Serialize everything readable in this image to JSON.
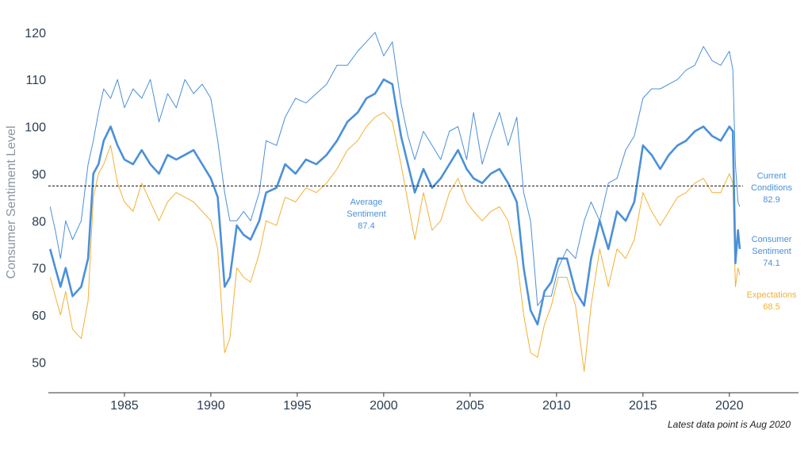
{
  "chart_data": {
    "type": "line",
    "title": "",
    "xlabel": "",
    "ylabel": "Consumer Sentiment Level",
    "xlim": [
      1980.6,
      2024.0
    ],
    "ylim": [
      43.5,
      123.5
    ],
    "grid": false,
    "yticks": [
      50,
      60,
      70,
      80,
      90,
      100,
      110,
      120
    ],
    "xticks": [
      1985,
      1990,
      1995,
      2000,
      2005,
      2010,
      2015,
      2020
    ],
    "average": {
      "value": 87.4,
      "label_lines": [
        "Average",
        "Sentiment",
        "87.4"
      ]
    },
    "note": "Latest data point is Aug 2020",
    "colors": {
      "current": "#4a90d9",
      "sentiment": "#4a90d9",
      "expectations": "#f2b134",
      "axis": "#333333",
      "text": "#2c3e50"
    },
    "series": [
      {
        "name": "Current Conditions",
        "key": "current",
        "end_label": [
          "Current",
          "Conditions",
          "82.9"
        ],
        "x": [
          1980.7,
          1981.0,
          1981.3,
          1981.6,
          1982.0,
          1982.5,
          1982.9,
          1983.2,
          1983.5,
          1983.8,
          1984.2,
          1984.6,
          1985.0,
          1985.5,
          1986.0,
          1986.5,
          1987.0,
          1987.5,
          1988.0,
          1988.5,
          1989.0,
          1989.5,
          1990.0,
          1990.4,
          1990.8,
          1991.1,
          1991.5,
          1991.9,
          1992.3,
          1992.8,
          1993.2,
          1993.8,
          1994.3,
          1994.9,
          1995.5,
          1996.1,
          1996.7,
          1997.3,
          1997.9,
          1998.5,
          1999.0,
          1999.5,
          2000.0,
          2000.5,
          2001.0,
          2001.4,
          2001.8,
          2002.3,
          2002.8,
          2003.3,
          2003.8,
          2004.3,
          2004.8,
          2005.2,
          2005.7,
          2006.2,
          2006.7,
          2007.2,
          2007.7,
          2008.1,
          2008.5,
          2008.9,
          2009.3,
          2009.7,
          2010.1,
          2010.6,
          2011.1,
          2011.6,
          2012.0,
          2012.5,
          2013.0,
          2013.5,
          2014.0,
          2014.5,
          2015.0,
          2015.5,
          2016.0,
          2016.5,
          2017.0,
          2017.5,
          2018.0,
          2018.5,
          2019.0,
          2019.5,
          2020.0,
          2020.2,
          2020.35,
          2020.5,
          2020.6
        ],
        "y": [
          83,
          78,
          72,
          80,
          76,
          80,
          92,
          97,
          103,
          108,
          106,
          110,
          104,
          108,
          106,
          110,
          101,
          107,
          104,
          110,
          107,
          109,
          106,
          97,
          86,
          80,
          80,
          82,
          80,
          86,
          97,
          96,
          102,
          106,
          105,
          107,
          109,
          113,
          113,
          116,
          118,
          120,
          115,
          118,
          105,
          98,
          93,
          99,
          96,
          93,
          99,
          100,
          93,
          103,
          92,
          98,
          103,
          96,
          102,
          86,
          80,
          62,
          64,
          64,
          70,
          74,
          72,
          80,
          84,
          80,
          88,
          89,
          95,
          98,
          106,
          108,
          108,
          109,
          110,
          112,
          113,
          117,
          114,
          113,
          116,
          112,
          92,
          84,
          83
        ]
      },
      {
        "name": "Consumer Sentiment",
        "key": "sentiment",
        "end_label": [
          "Consumer",
          "Sentiment",
          "74.1"
        ],
        "x": [
          1980.7,
          1981.0,
          1981.3,
          1981.6,
          1982.0,
          1982.5,
          1982.9,
          1983.2,
          1983.5,
          1983.8,
          1984.2,
          1984.6,
          1985.0,
          1985.5,
          1986.0,
          1986.5,
          1987.0,
          1987.5,
          1988.0,
          1988.5,
          1989.0,
          1989.5,
          1990.0,
          1990.4,
          1990.8,
          1991.1,
          1991.5,
          1991.9,
          1992.3,
          1992.8,
          1993.2,
          1993.8,
          1994.3,
          1994.9,
          1995.5,
          1996.1,
          1996.7,
          1997.3,
          1997.9,
          1998.5,
          1999.0,
          1999.5,
          2000.0,
          2000.5,
          2001.0,
          2001.4,
          2001.8,
          2002.3,
          2002.8,
          2003.3,
          2003.8,
          2004.3,
          2004.8,
          2005.2,
          2005.7,
          2006.2,
          2006.7,
          2007.2,
          2007.7,
          2008.1,
          2008.5,
          2008.9,
          2009.3,
          2009.7,
          2010.1,
          2010.6,
          2011.1,
          2011.6,
          2012.0,
          2012.5,
          2013.0,
          2013.5,
          2014.0,
          2014.5,
          2015.0,
          2015.5,
          2016.0,
          2016.5,
          2017.0,
          2017.5,
          2018.0,
          2018.5,
          2019.0,
          2019.5,
          2020.0,
          2020.2,
          2020.35,
          2020.5,
          2020.6
        ],
        "y": [
          74,
          70,
          66,
          70,
          64,
          66,
          72,
          90,
          92,
          97,
          100,
          96,
          93,
          92,
          95,
          92,
          90,
          94,
          93,
          94,
          95,
          92,
          89,
          85,
          66,
          68,
          79,
          77,
          76,
          80,
          86,
          87,
          92,
          90,
          93,
          92,
          94,
          97,
          101,
          103,
          106,
          107,
          110,
          109,
          98,
          92,
          86,
          91,
          87,
          89,
          92,
          95,
          91,
          89,
          88,
          90,
          91,
          88,
          84,
          70,
          61,
          58,
          65,
          67,
          72,
          72,
          65,
          62,
          72,
          80,
          74,
          82,
          80,
          84,
          96,
          94,
          91,
          94,
          96,
          97,
          99,
          100,
          98,
          97,
          100,
          99,
          71,
          78,
          74
        ]
      },
      {
        "name": "Expectations",
        "key": "expectations",
        "end_label": [
          "Expectations",
          "68.5"
        ],
        "x": [
          1980.7,
          1981.0,
          1981.3,
          1981.6,
          1982.0,
          1982.5,
          1982.9,
          1983.2,
          1983.5,
          1983.8,
          1984.2,
          1984.6,
          1985.0,
          1985.5,
          1986.0,
          1986.5,
          1987.0,
          1987.5,
          1988.0,
          1988.5,
          1989.0,
          1989.5,
          1990.0,
          1990.4,
          1990.8,
          1991.1,
          1991.5,
          1991.9,
          1992.3,
          1992.8,
          1993.2,
          1993.8,
          1994.3,
          1994.9,
          1995.5,
          1996.1,
          1996.7,
          1997.3,
          1997.9,
          1998.5,
          1999.0,
          1999.5,
          2000.0,
          2000.5,
          2001.0,
          2001.4,
          2001.8,
          2002.3,
          2002.8,
          2003.3,
          2003.8,
          2004.3,
          2004.8,
          2005.2,
          2005.7,
          2006.2,
          2006.7,
          2007.2,
          2007.7,
          2008.1,
          2008.5,
          2008.9,
          2009.3,
          2009.7,
          2010.1,
          2010.6,
          2011.1,
          2011.6,
          2012.0,
          2012.5,
          2013.0,
          2013.5,
          2014.0,
          2014.5,
          2015.0,
          2015.5,
          2016.0,
          2016.5,
          2017.0,
          2017.5,
          2018.0,
          2018.5,
          2019.0,
          2019.5,
          2020.0,
          2020.2,
          2020.35,
          2020.5,
          2020.6
        ],
        "y": [
          68,
          64,
          60,
          65,
          57,
          55,
          63,
          85,
          90,
          92,
          96,
          88,
          84,
          82,
          88,
          84,
          80,
          84,
          86,
          85,
          84,
          82,
          80,
          74,
          52,
          55,
          70,
          68,
          67,
          73,
          80,
          79,
          85,
          84,
          87,
          86,
          88,
          91,
          95,
          97,
          100,
          102,
          103,
          101,
          92,
          84,
          76,
          86,
          78,
          80,
          86,
          89,
          84,
          82,
          80,
          82,
          83,
          80,
          72,
          60,
          52,
          51,
          58,
          62,
          68,
          68,
          62,
          48,
          62,
          74,
          66,
          74,
          72,
          76,
          86,
          82,
          79,
          82,
          85,
          86,
          88,
          89,
          86,
          86,
          90,
          88,
          66,
          70,
          68.5
        ]
      }
    ]
  }
}
